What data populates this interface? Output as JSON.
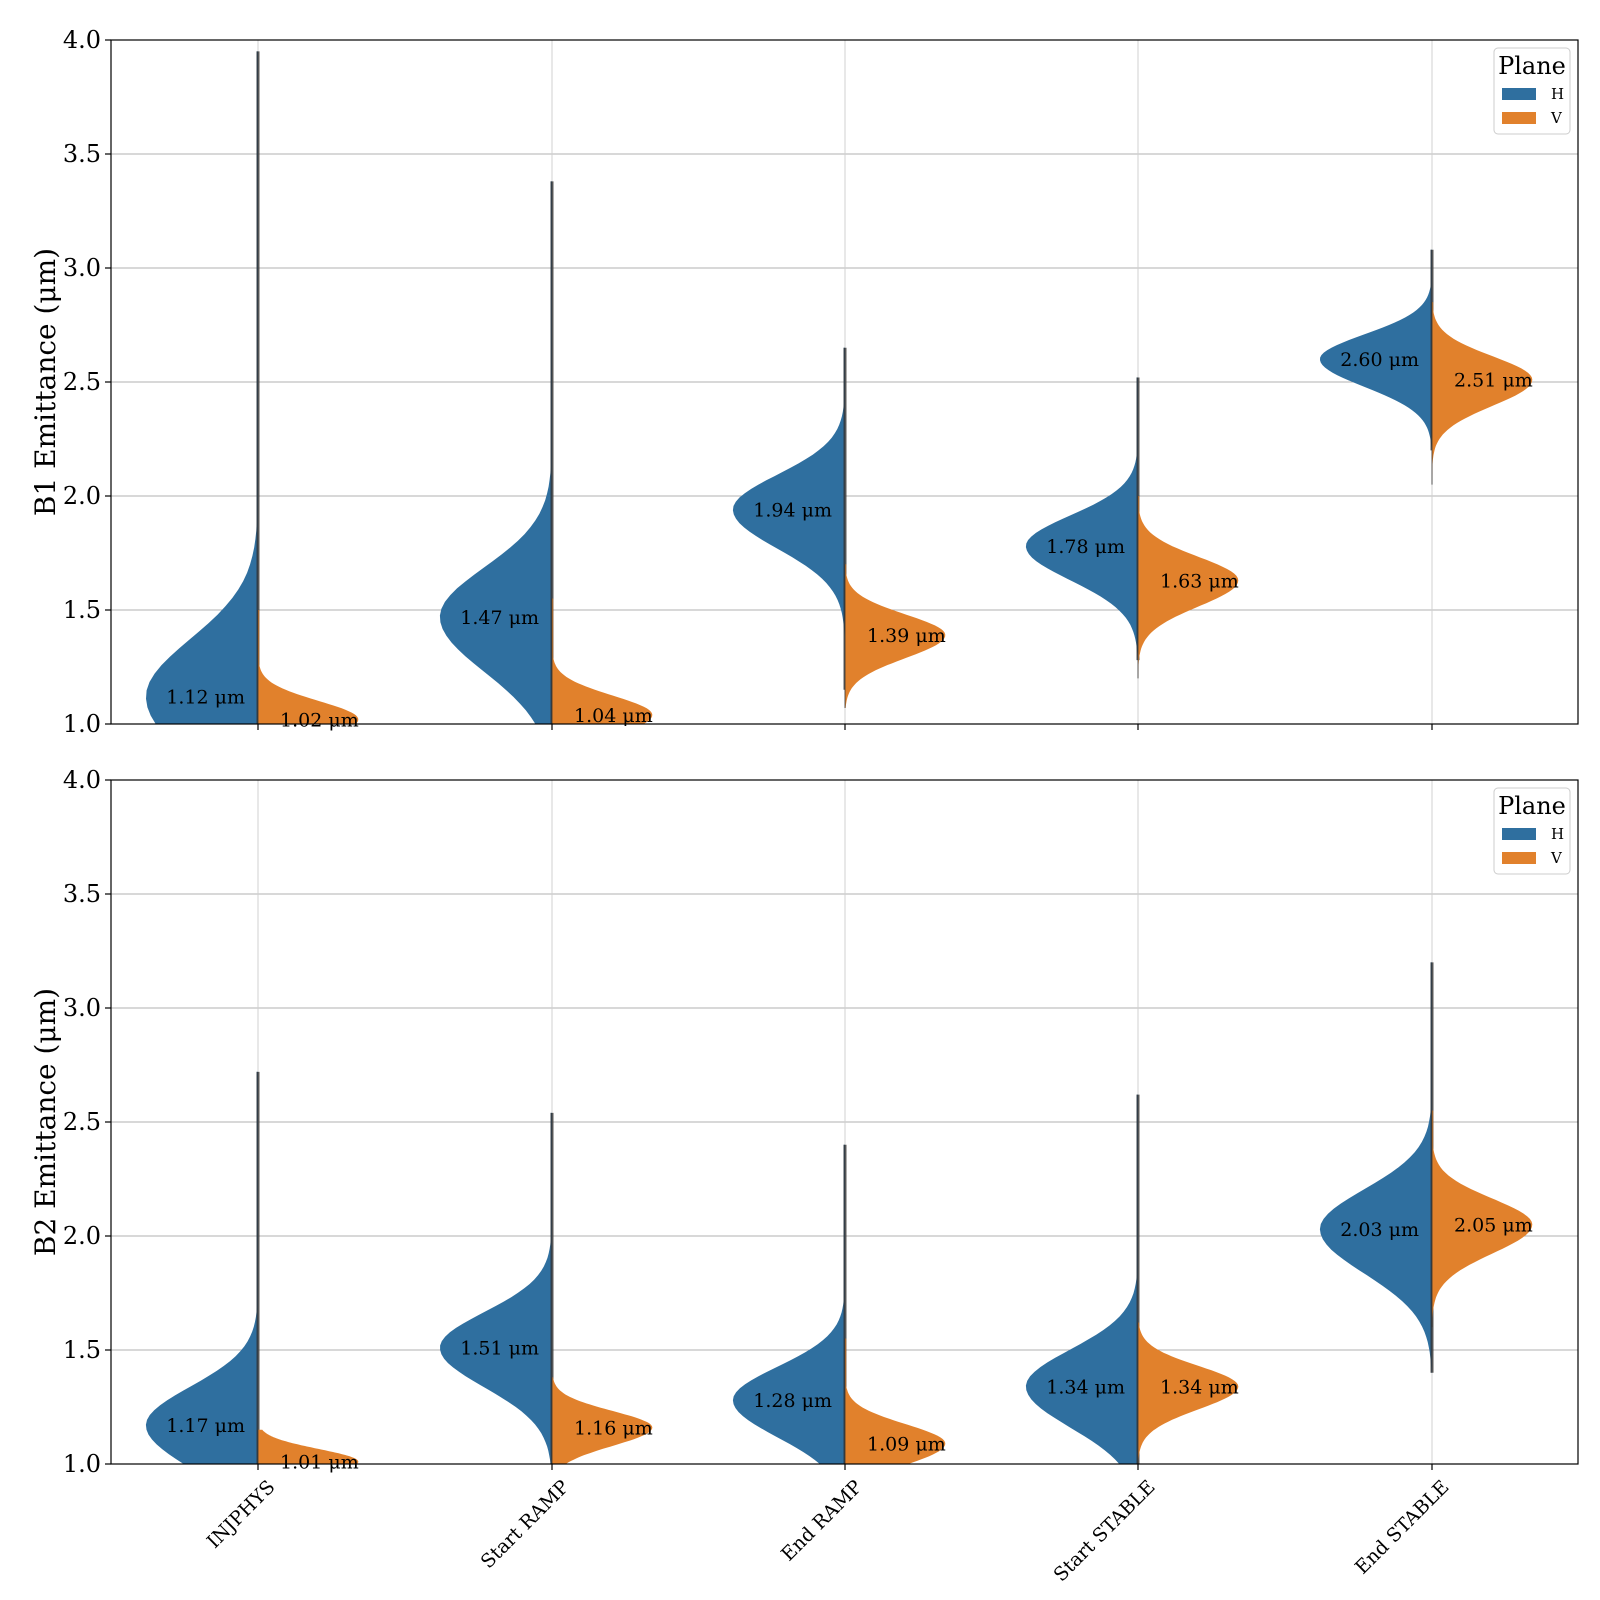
{
  "chart_data": [
    {
      "type": "violin",
      "panel": "top",
      "ylabel": "B1 Emittance (μm)",
      "ylim": [
        1.0,
        4.0
      ],
      "yticks": [
        "1.0",
        "1.5",
        "2.0",
        "2.5",
        "3.0",
        "3.5",
        "4.0"
      ],
      "grid": true,
      "legend": {
        "title": "Plane",
        "position": "top-right",
        "entries": [
          "H",
          "V"
        ]
      },
      "categories": [
        "INJPHYS",
        "Start RAMP",
        "End RAMP",
        "Start STABLE",
        "End STABLE"
      ],
      "series": [
        {
          "name": "H",
          "color": "#2f6f9f",
          "medians": [
            1.12,
            1.47,
            1.94,
            1.78,
            2.6
          ],
          "median_labels": [
            "1.12 μm",
            "1.47 μm",
            "1.94 μm",
            "1.78 μm",
            "2.60 μm"
          ],
          "ranges": [
            [
              1.0,
              3.95
            ],
            [
              1.0,
              3.38
            ],
            [
              1.15,
              2.65
            ],
            [
              1.28,
              2.52
            ],
            [
              2.2,
              3.08
            ]
          ]
        },
        {
          "name": "V",
          "color": "#e1812c",
          "medians": [
            1.02,
            1.04,
            1.39,
            1.63,
            2.51
          ],
          "median_labels": [
            "1.02 μm",
            "1.04 μm",
            "1.39 μm",
            "1.63 μm",
            "2.51 μm"
          ],
          "ranges": [
            [
              1.0,
              1.5
            ],
            [
              1.0,
              1.55
            ],
            [
              1.07,
              1.7
            ],
            [
              1.2,
              2.0
            ],
            [
              2.05,
              2.85
            ]
          ]
        }
      ]
    },
    {
      "type": "violin",
      "panel": "bottom",
      "ylabel": "B2 Emittance (μm)",
      "ylim": [
        1.0,
        4.0
      ],
      "yticks": [
        "1.0",
        "1.5",
        "2.0",
        "2.5",
        "3.0",
        "3.5",
        "4.0"
      ],
      "grid": true,
      "legend": {
        "title": "Plane",
        "position": "top-right",
        "entries": [
          "H",
          "V"
        ]
      },
      "categories": [
        "INJPHYS",
        "Start RAMP",
        "End RAMP",
        "Start STABLE",
        "End STABLE"
      ],
      "series": [
        {
          "name": "H",
          "color": "#2f6f9f",
          "medians": [
            1.17,
            1.51,
            1.28,
            1.34,
            2.03
          ],
          "median_labels": [
            "1.17 μm",
            "1.51 μm",
            "1.28 μm",
            "1.34 μm",
            "2.03 μm"
          ],
          "ranges": [
            [
              1.0,
              2.72
            ],
            [
              1.0,
              2.54
            ],
            [
              1.0,
              2.4
            ],
            [
              1.0,
              2.62
            ],
            [
              1.4,
              3.2
            ]
          ]
        },
        {
          "name": "V",
          "color": "#e1812c",
          "medians": [
            1.01,
            1.16,
            1.09,
            1.34,
            2.05
          ],
          "median_labels": [
            "1.01 μm",
            "1.16 μm",
            "1.09 μm",
            "1.34 μm",
            "2.05 μm"
          ],
          "ranges": [
            [
              1.0,
              1.15
            ],
            [
              1.0,
              1.38
            ],
            [
              1.0,
              1.55
            ],
            [
              1.0,
              1.62
            ],
            [
              1.6,
              2.55
            ]
          ]
        }
      ]
    }
  ]
}
